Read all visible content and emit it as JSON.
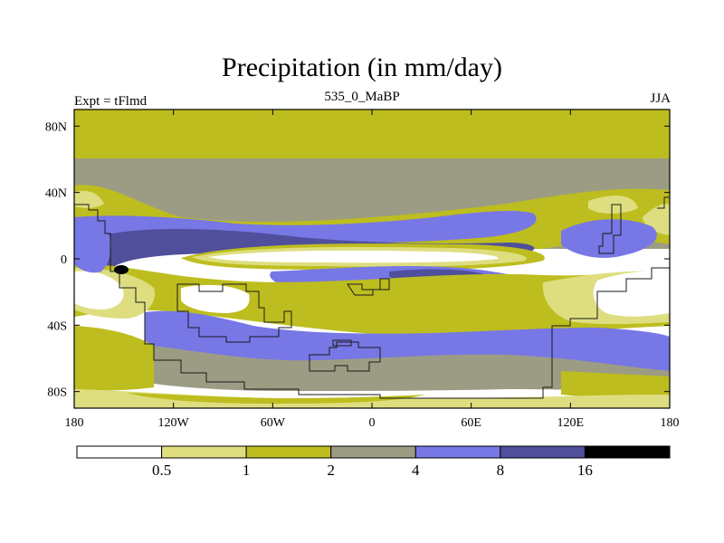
{
  "header": {
    "title": "Precipitation (in mm/day)",
    "left_label": "Expt = tFlmd",
    "center_label": "535_0_MaBP",
    "right_label": "JJA"
  },
  "palette": {
    "lt_0_5": "#ffffff",
    "b0_5_1": "#dede80",
    "b1_2": "#bdbd1f",
    "b2_4": "#9c9c84",
    "b4_8": "#7777e6",
    "b8_16": "#4f4f9c",
    "gt_16": "#000000",
    "outline": "#1a1a1a"
  },
  "chart_data": {
    "type": "heatmap",
    "title": "Precipitation (in mm/day)",
    "units": "mm/day",
    "projection": "cylindrical equidistant",
    "xlim": [
      -180,
      180
    ],
    "ylim": [
      -90,
      90
    ],
    "x_ticks": [
      {
        "value": -180,
        "label": "180"
      },
      {
        "value": -120,
        "label": "120W"
      },
      {
        "value": -60,
        "label": "60W"
      },
      {
        "value": 0,
        "label": "0"
      },
      {
        "value": 60,
        "label": "60E"
      },
      {
        "value": 120,
        "label": "120E"
      },
      {
        "value": 180,
        "label": "180"
      }
    ],
    "y_ticks": [
      {
        "value": 80,
        "label": "80N"
      },
      {
        "value": 40,
        "label": "40N"
      },
      {
        "value": 0,
        "label": "0"
      },
      {
        "value": -40,
        "label": "40S"
      },
      {
        "value": -80,
        "label": "80S"
      }
    ],
    "levels": [
      0.5,
      1,
      2,
      4,
      8,
      16
    ],
    "level_labels": [
      "0.5",
      "1",
      "2",
      "4",
      "8",
      "16"
    ],
    "categories": [
      "<0.5",
      "0.5-1",
      "1-2",
      "2-4",
      "4-8",
      "8-16",
      ">16"
    ],
    "zonal_bands": [
      {
        "lat": [
          75,
          90
        ],
        "category": "1-2"
      },
      {
        "lat": [
          60,
          75
        ],
        "category": "1-2"
      },
      {
        "lat": [
          30,
          60
        ],
        "category": "2-4"
      },
      {
        "lat": [
          12,
          25
        ],
        "category": "4-8"
      },
      {
        "lat": [
          2,
          10
        ],
        "category": "8-16"
      },
      {
        "lat": [
          -2,
          2
        ],
        "category": "<0.5"
      },
      {
        "lat": [
          -35,
          -20
        ],
        "category": "<0.5"
      },
      {
        "lat": [
          -55,
          -40
        ],
        "category": "4-8"
      },
      {
        "lat": [
          -70,
          -55
        ],
        "category": "2-4"
      },
      {
        "lat": [
          -90,
          -80
        ],
        "category": "0.5-1"
      }
    ],
    "maximum": {
      "lon": -150,
      "lat": -7,
      "category": ">16"
    }
  }
}
